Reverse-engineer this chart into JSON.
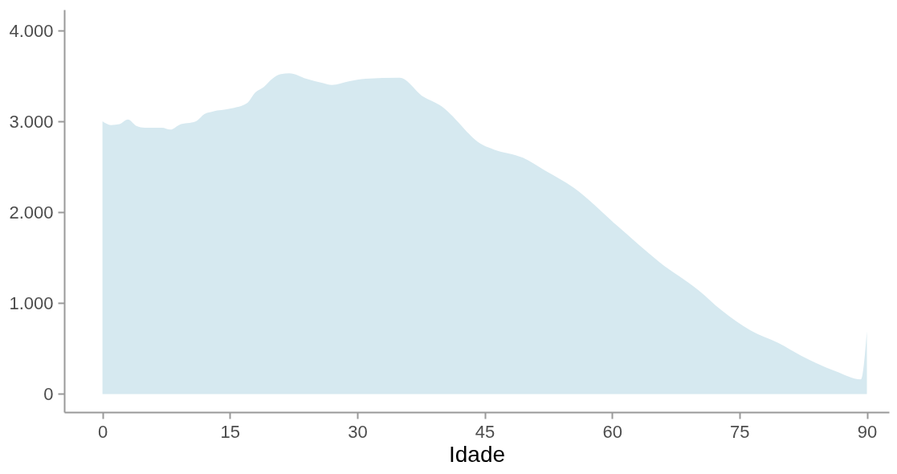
{
  "chart_data": {
    "type": "area",
    "xlabel": "Idade",
    "x": [
      0,
      1,
      2,
      3,
      4,
      5,
      7,
      8,
      9,
      11,
      12,
      13,
      15,
      17,
      18,
      19,
      20,
      21,
      22,
      24,
      26,
      27,
      29,
      31,
      35,
      37.8,
      39.7,
      44.8,
      46.1,
      49.5,
      52.1,
      55.5,
      60.5,
      65.6,
      70.2,
      72.9,
      76.3,
      79.6,
      82.3,
      86.3,
      89.3,
      90
    ],
    "series": [
      {
        "color": "#d6e9f0",
        "values": [
          3000,
          2960,
          2970,
          3020,
          2950,
          2930,
          2930,
          2910,
          2960,
          3000,
          3080,
          3110,
          3140,
          3200,
          3320,
          3380,
          3470,
          3520,
          3530,
          3470,
          3420,
          3400,
          3440,
          3470,
          3480,
          3270,
          3180,
          2740,
          2690,
          2600,
          2460,
          2270,
          1860,
          1450,
          1140,
          920,
          700,
          560,
          420,
          250,
          160,
          690
        ]
      }
    ],
    "xlim": [
      -4.5,
      92.6
    ],
    "ylim": [
      -200,
      4230
    ],
    "xticks": [
      0,
      15,
      30,
      45,
      60,
      75,
      90
    ],
    "yticks": [
      0,
      {
        "value": 1000,
        "label": "1.000"
      },
      {
        "value": 2000,
        "label": "2.000"
      },
      {
        "value": 3000,
        "label": "3.000"
      },
      {
        "value": 4000,
        "label": "4.000"
      }
    ],
    "grid": false,
    "legend": false
  }
}
